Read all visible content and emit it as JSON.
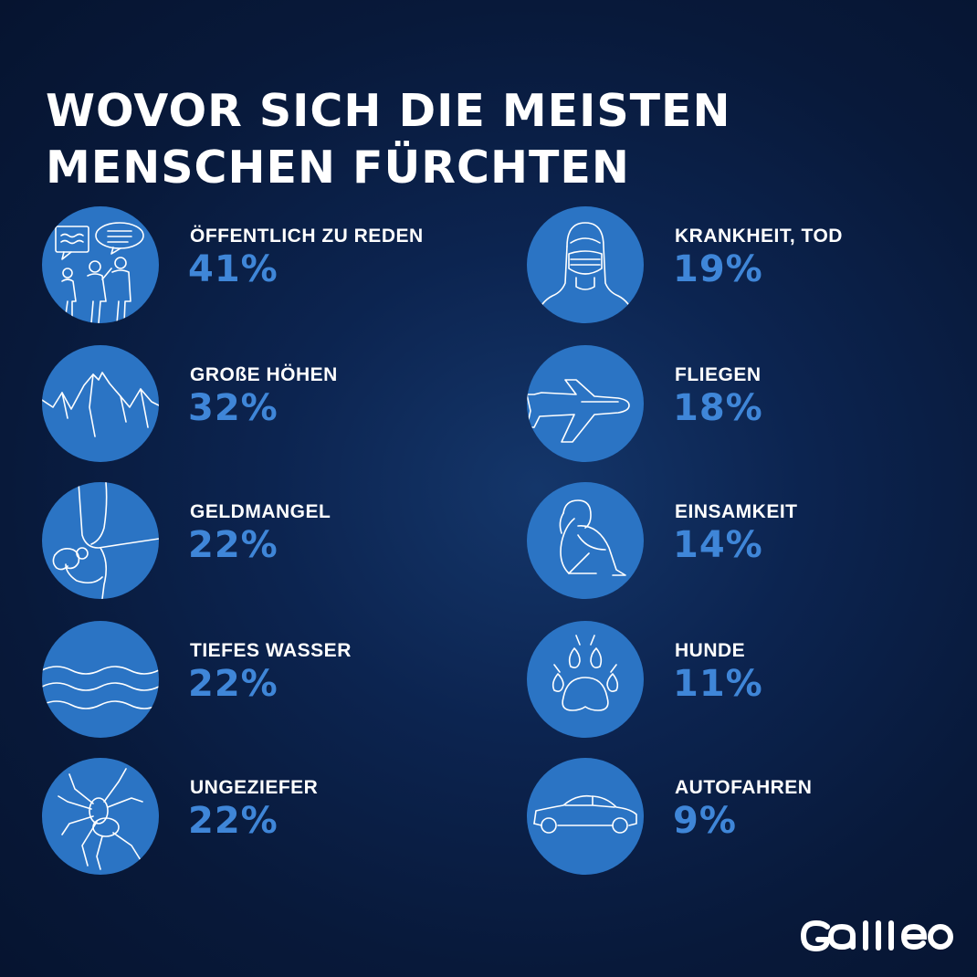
{
  "title": {
    "line1": "WOVOR SICH DIE MEISTEN",
    "line2": "MENSCHEN FÜRCHTEN"
  },
  "left_items": [
    {
      "label": "ÖFFENTLICH ZU REDEN",
      "value": "41%",
      "icon": "public-speaking-icon"
    },
    {
      "label": "GROßE HÖHEN",
      "value": "32%",
      "icon": "mountain-icon"
    },
    {
      "label": "GELDMANGEL",
      "value": "22%",
      "icon": "empty-pocket-icon"
    },
    {
      "label": "TIEFES WASSER",
      "value": "22%",
      "icon": "water-waves-icon"
    },
    {
      "label": "UNGEZIEFER",
      "value": "22%",
      "icon": "spider-icon"
    }
  ],
  "right_items": [
    {
      "label": "KRANKHEIT, TOD",
      "value": "19%",
      "icon": "face-mask-icon"
    },
    {
      "label": "FLIEGEN",
      "value": "18%",
      "icon": "airplane-icon"
    },
    {
      "label": "EINSAMKEIT",
      "value": "14%",
      "icon": "lonely-person-icon"
    },
    {
      "label": "HUNDE",
      "value": "11%",
      "icon": "paw-icon"
    },
    {
      "label": "AUTOFAHREN",
      "value": "9%",
      "icon": "car-icon"
    }
  ],
  "logo": "Galileo",
  "colors": {
    "background": "#0a1f45",
    "circle": "#2b74c4",
    "value": "#3f86d8",
    "text": "#ffffff"
  }
}
